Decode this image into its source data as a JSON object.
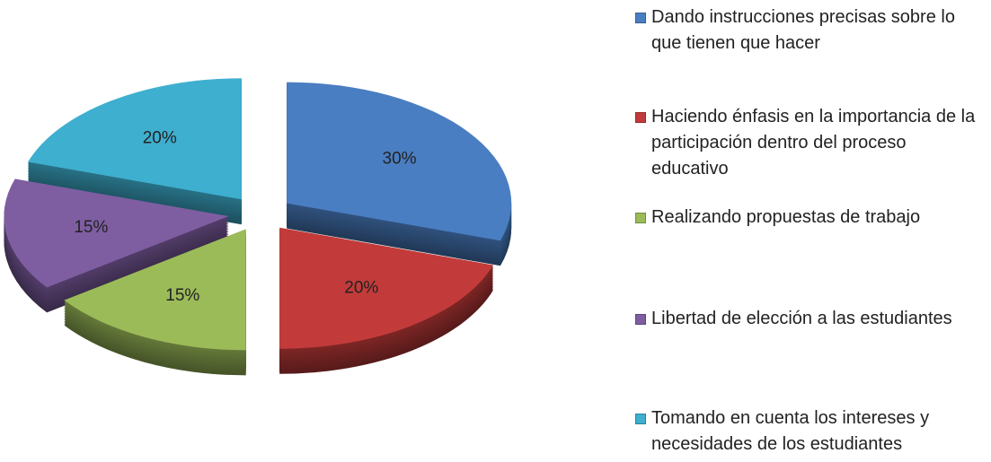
{
  "chart_data": {
    "type": "pie3d",
    "categories": [
      "Dando instrucciones precisas sobre lo que tienen que hacer",
      "Haciendo énfasis en la importancia de la participación dentro del proceso educativo",
      "Realizando propuestas de trabajo",
      "Libertad de elección a las estudiantes",
      "Tomando en cuenta los intereses y necesidades de los estudiantes"
    ],
    "values": [
      30,
      20,
      15,
      15,
      20
    ],
    "value_labels": [
      "30%",
      "20%",
      "15%",
      "15%",
      "20%"
    ],
    "colors": [
      "#4a7ec2",
      "#c23b3a",
      "#9bbb59",
      "#7e5ea1",
      "#3eafcf"
    ],
    "legend": "right"
  }
}
